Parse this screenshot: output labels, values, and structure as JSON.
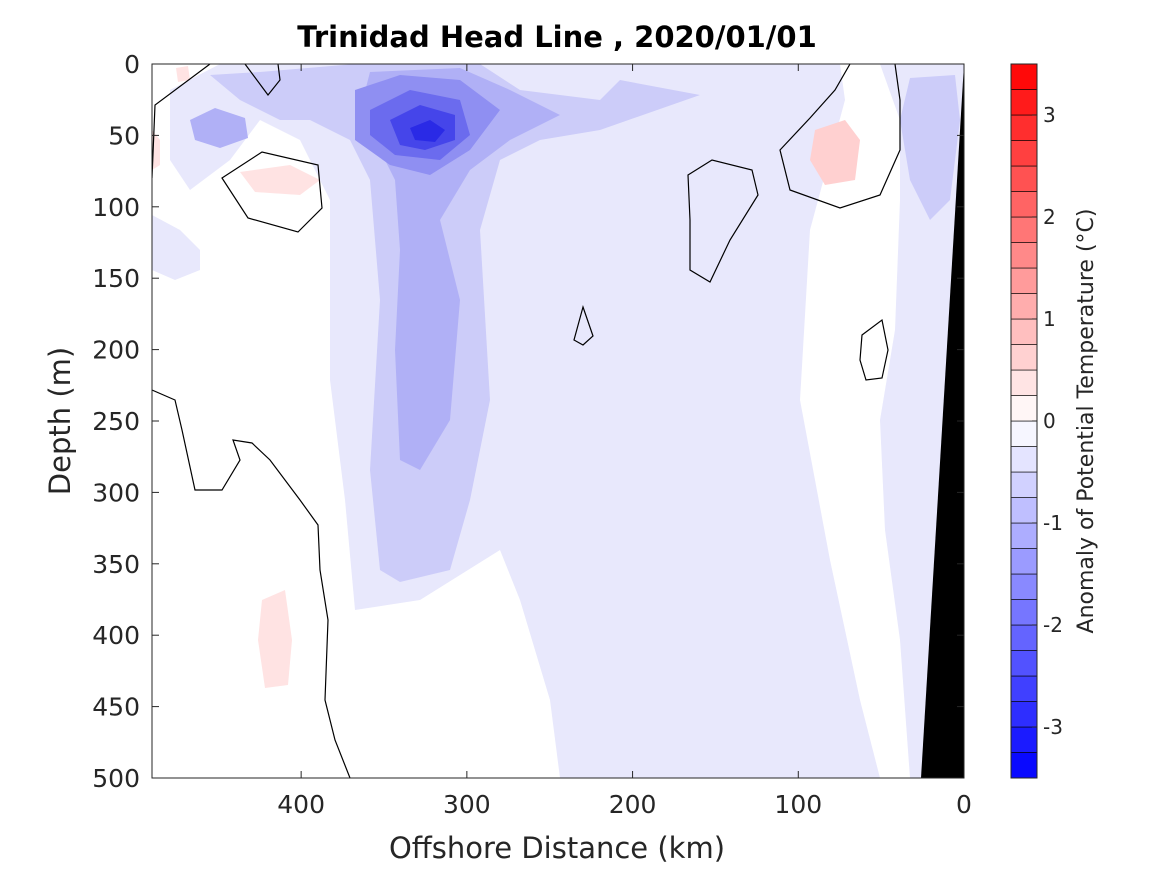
{
  "chart_data": {
    "type": "heatmap",
    "title": "Trinidad Head Line , 2020/01/01",
    "xlabel": "Offshore Distance (km)",
    "ylabel": "Depth (m)",
    "colorbar_label": "Anomaly of Potential Temperature (°C)",
    "xlim": [
      490,
      0
    ],
    "ylim": [
      0,
      500
    ],
    "x_reversed": true,
    "y_reversed": true,
    "x_ticks": [
      400,
      300,
      200,
      100,
      0
    ],
    "y_ticks": [
      0,
      50,
      100,
      150,
      200,
      250,
      300,
      350,
      400,
      450,
      500
    ],
    "clim": [
      -3.5,
      3.5
    ],
    "colorbar_ticks": [
      3,
      2,
      1,
      0,
      -1,
      -2,
      -3
    ],
    "contour_levels": [
      -3.5,
      -3.25,
      -3.0,
      -2.75,
      -2.5,
      -2.25,
      -2.0,
      -1.75,
      -1.5,
      -1.25,
      -1.0,
      -0.75,
      -0.5,
      -0.25,
      0,
      0.25,
      0.5,
      0.75,
      1.0,
      1.25,
      1.5,
      1.75,
      2.0,
      2.25,
      2.5,
      2.75,
      3.0,
      3.25,
      3.5
    ],
    "colormap": {
      "negative": "#0000ff",
      "zero": "#ffffff",
      "positive": "#ff0000"
    },
    "bathymetry_color": "#000000",
    "zero_contour_color": "#000000",
    "features": [
      {
        "kind": "cold_core",
        "x_km": 322,
        "depth_m": 50,
        "anomaly_c": -2.5
      },
      {
        "kind": "cold_tongue",
        "x_km": 320,
        "depth_top_m": 80,
        "depth_bottom_m": 330,
        "anomaly_c": -1.0
      },
      {
        "kind": "cold_patch",
        "x_km": 445,
        "depth_m": 45,
        "anomaly_c": -1.0
      },
      {
        "kind": "cold_patch",
        "x_km": 205,
        "depth_m": 40,
        "anomaly_c": -0.75
      },
      {
        "kind": "cold_patch",
        "x_km": 15,
        "depth_m": 80,
        "anomaly_c": -1.0
      },
      {
        "kind": "warm_patch",
        "x_km": 410,
        "depth_m": 80,
        "anomaly_c": 0.25
      },
      {
        "kind": "warm_patch",
        "x_km": 70,
        "depth_m": 55,
        "anomaly_c": 0.5
      },
      {
        "kind": "warm_patch",
        "x_km": 420,
        "depth_m": 410,
        "anomaly_c": 0.25
      }
    ]
  }
}
